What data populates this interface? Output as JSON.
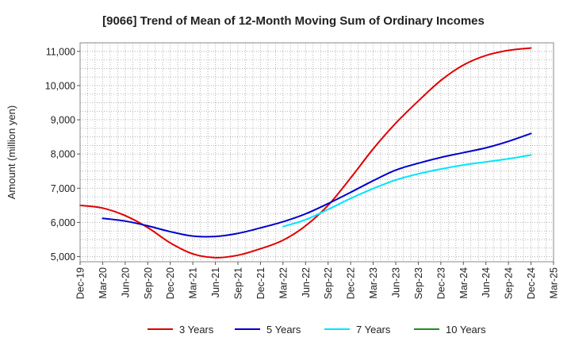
{
  "chart_data": {
    "type": "line",
    "title": "[9066]  Trend of Mean of 12-Month Moving Sum of Ordinary Incomes",
    "xlabel": "",
    "ylabel": "Amount (million yen)",
    "ylim": [
      4850,
      11250
    ],
    "yticks": [
      5000,
      6000,
      7000,
      8000,
      9000,
      10000,
      11000
    ],
    "ytick_labels": [
      "5,000",
      "6,000",
      "7,000",
      "8,000",
      "9,000",
      "10,000",
      "11,000"
    ],
    "x_categories": [
      "Dec-19",
      "Mar-20",
      "Jun-20",
      "Sep-20",
      "Dec-20",
      "Mar-21",
      "Jun-21",
      "Sep-21",
      "Dec-21",
      "Mar-22",
      "Jun-22",
      "Sep-22",
      "Dec-22",
      "Mar-23",
      "Jun-23",
      "Sep-23",
      "Dec-23",
      "Mar-24",
      "Jun-24",
      "Sep-24",
      "Dec-24",
      "Mar-25"
    ],
    "grid": true,
    "series": [
      {
        "name": "3 Years",
        "color": "#e00000",
        "values": [
          6500,
          6420,
          6200,
          5850,
          5400,
          5080,
          4970,
          5040,
          5230,
          5480,
          5900,
          6500,
          7300,
          8150,
          8900,
          9550,
          10150,
          10600,
          10880,
          11030,
          11100,
          null
        ]
      },
      {
        "name": "5 Years",
        "color": "#0000cc",
        "values": [
          null,
          6120,
          6040,
          5900,
          5730,
          5600,
          5590,
          5680,
          5840,
          6020,
          6250,
          6550,
          6880,
          7220,
          7530,
          7730,
          7900,
          8040,
          8180,
          8370,
          8600,
          null
        ]
      },
      {
        "name": "7 Years",
        "color": "#00e5ff",
        "values": [
          null,
          null,
          null,
          null,
          null,
          null,
          null,
          null,
          null,
          5880,
          6080,
          6380,
          6700,
          6990,
          7240,
          7420,
          7560,
          7680,
          7770,
          7860,
          7970,
          null
        ]
      },
      {
        "name": "10 Years",
        "color": "#228b22",
        "values": []
      }
    ],
    "legend_position": "bottom"
  }
}
